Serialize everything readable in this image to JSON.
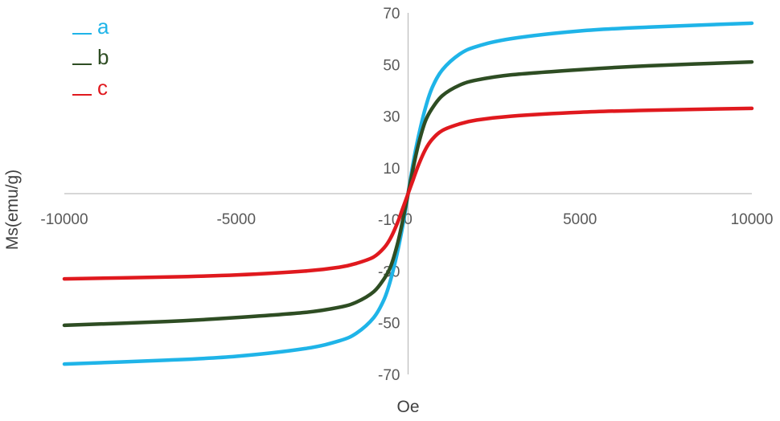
{
  "chart_data": {
    "type": "line",
    "title": "",
    "xlabel": "Oe",
    "ylabel": "Ms(emu/g)",
    "xlim": [
      -10000,
      10000
    ],
    "ylim": [
      -70,
      70
    ],
    "x_ticks": [
      -10000,
      -5000,
      0,
      5000,
      10000
    ],
    "x_tick_labels": [
      "-10000",
      "-5000",
      "0",
      "5000",
      "10000"
    ],
    "y_ticks": [
      -70,
      -50,
      -30,
      -10,
      10,
      30,
      50,
      70
    ],
    "y_tick_labels": [
      "-70",
      "-50",
      "-30",
      "-10",
      "10",
      "30",
      "50",
      "70"
    ],
    "grid": false,
    "legend_position": "top-left",
    "series": [
      {
        "name": "a",
        "color": "#1fb4e8",
        "x": [
          -10000,
          -7000,
          -5000,
          -3000,
          -2000,
          -1500,
          -1000,
          -700,
          -500,
          -300,
          -150,
          0,
          150,
          300,
          500,
          700,
          1000,
          1500,
          2000,
          3000,
          5000,
          7000,
          10000
        ],
        "y": [
          -66,
          -64.5,
          -63,
          -60,
          -57,
          -54,
          -48,
          -41,
          -33,
          -22,
          -12,
          0,
          12,
          22,
          33,
          41,
          48,
          54,
          57,
          60,
          63,
          64.5,
          66
        ]
      },
      {
        "name": "b",
        "color": "#2e4d23",
        "x": [
          -10000,
          -7000,
          -5000,
          -3000,
          -2000,
          -1500,
          -1000,
          -700,
          -500,
          -300,
          -150,
          0,
          150,
          300,
          500,
          700,
          1000,
          1500,
          2000,
          3000,
          5000,
          7000,
          10000
        ],
        "y": [
          -51,
          -49.5,
          -48,
          -46,
          -44,
          -42,
          -38,
          -33,
          -28,
          -19,
          -10,
          0,
          10,
          19,
          28,
          33,
          38,
          42,
          44,
          46,
          48,
          49.5,
          51
        ]
      },
      {
        "name": "c",
        "color": "#e0191e",
        "x": [
          -10000,
          -7000,
          -5000,
          -3000,
          -2000,
          -1500,
          -1000,
          -700,
          -500,
          -300,
          -150,
          0,
          150,
          300,
          500,
          700,
          1000,
          1500,
          2000,
          3000,
          5000,
          7000,
          10000
        ],
        "y": [
          -33,
          -32.3,
          -31.5,
          -30,
          -28.5,
          -27,
          -24.5,
          -21,
          -17,
          -11,
          -5.5,
          0,
          5.5,
          11,
          17,
          21,
          24.5,
          27,
          28.5,
          30,
          31.5,
          32.3,
          33
        ]
      }
    ]
  }
}
